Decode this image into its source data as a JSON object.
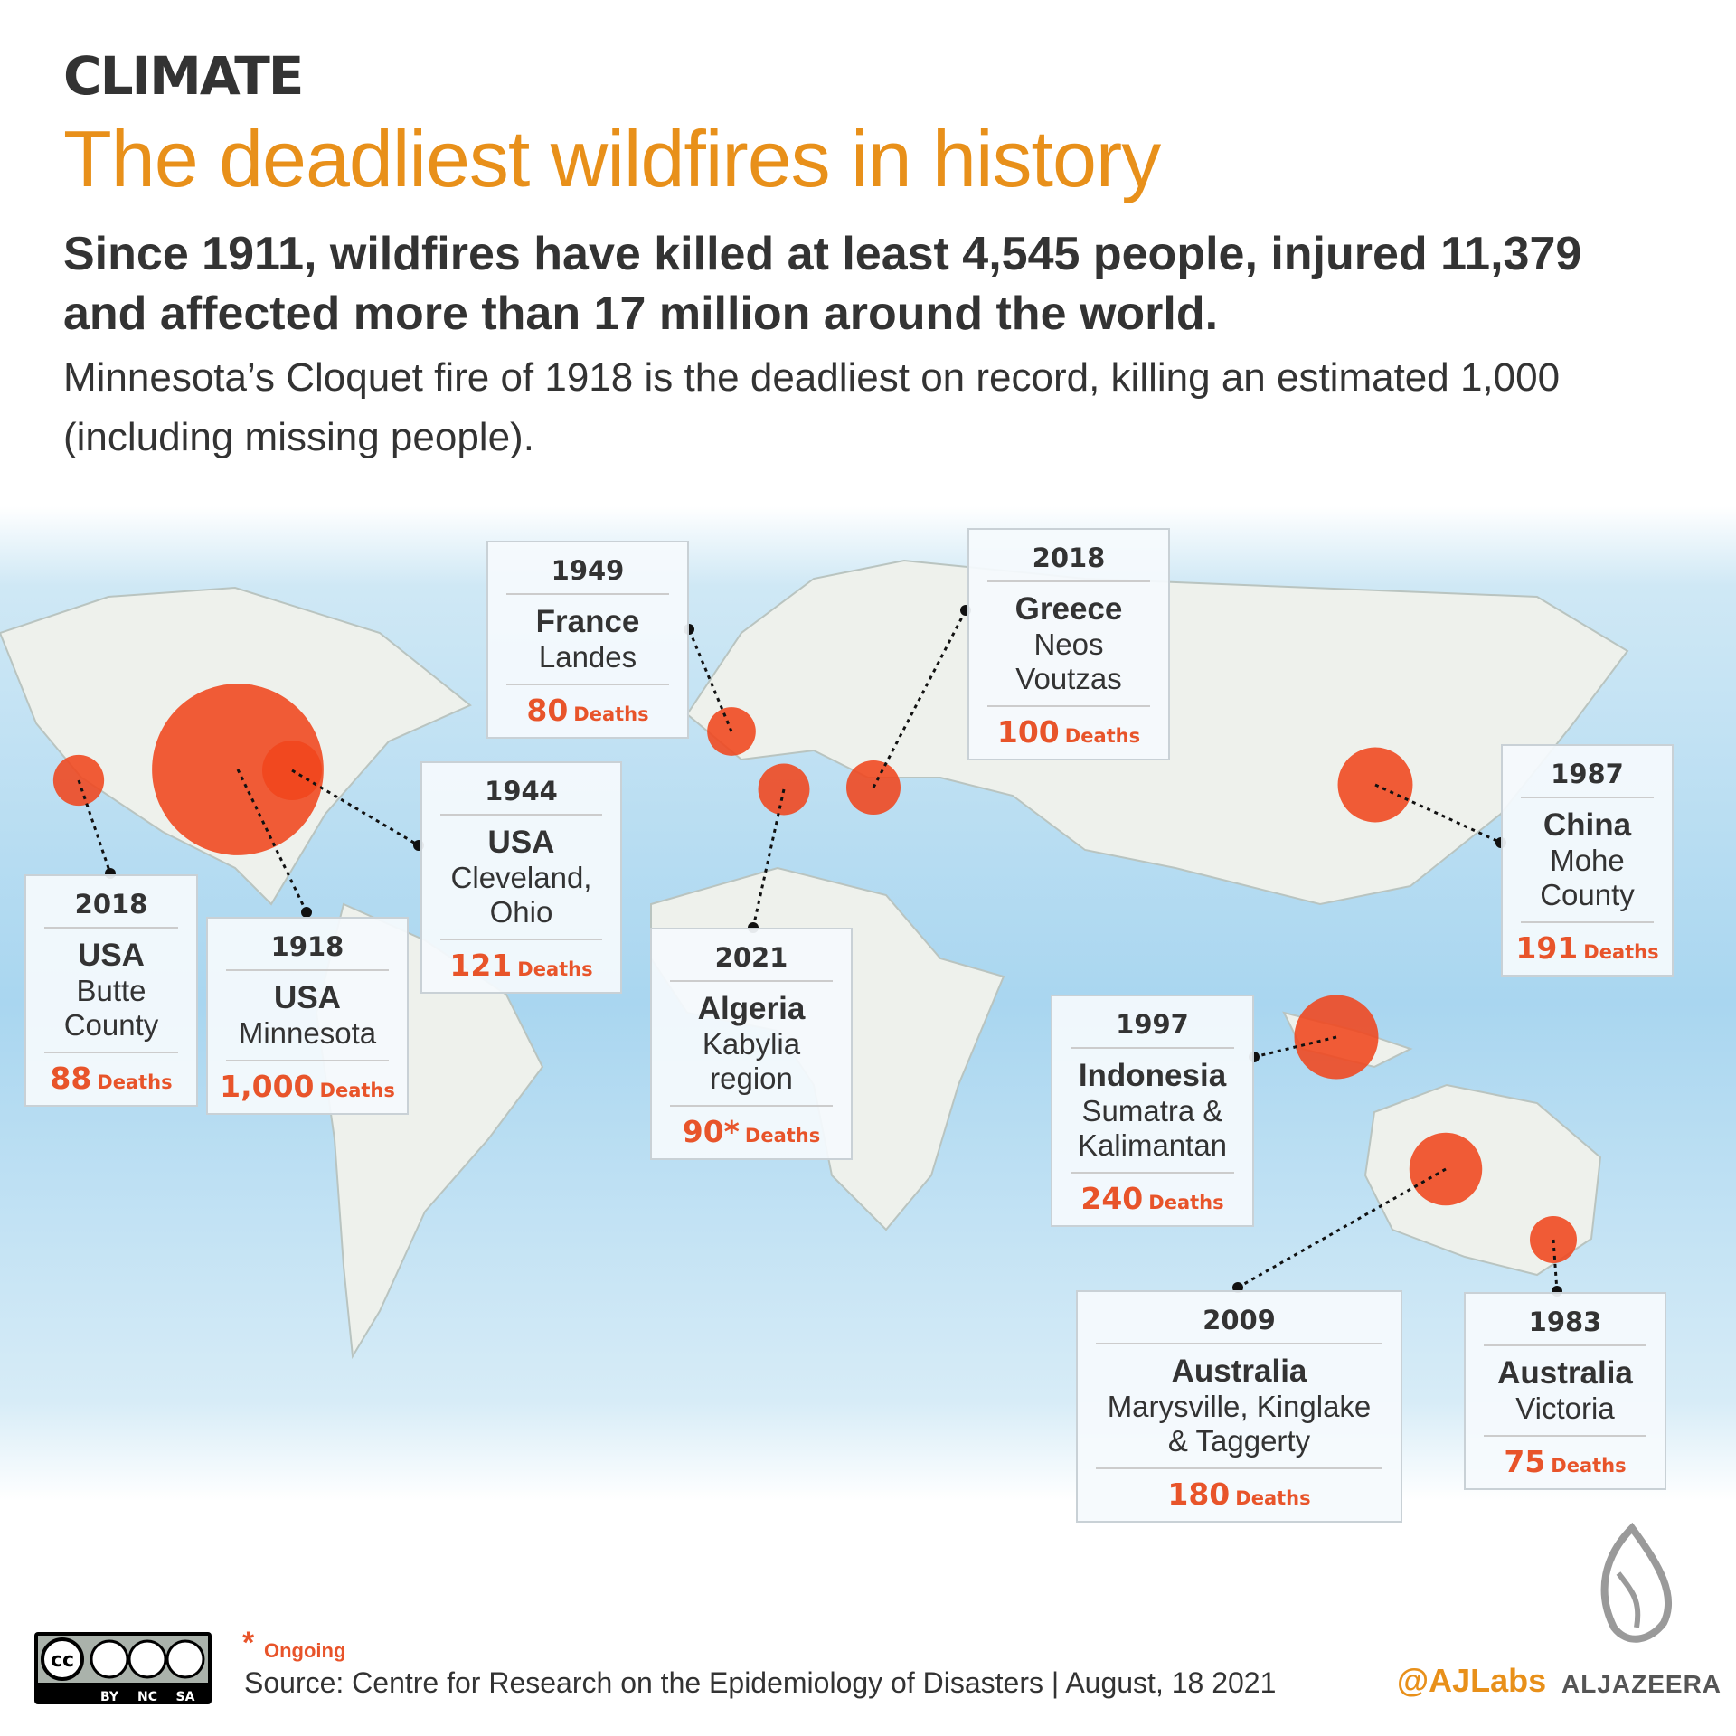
{
  "header": {
    "section": "CLIMATE",
    "title": "The deadliest wildfires in history",
    "subtitle": "Since 1911, wildfires have killed at least 4,545 people, injured 11,379 and affected more than 17 million around the world.",
    "description": "Minnesota’s Cloquet fire of 1918 is the deadliest on record, killing an estimated 1,000 (including missing people)."
  },
  "deaths_unit": "Deaths",
  "fires": [
    {
      "year": "1949",
      "country": "France",
      "place": "Landes",
      "deaths": 80
    },
    {
      "year": "2018",
      "country": "Greece",
      "place": "Neos Voutzas",
      "deaths": 100
    },
    {
      "year": "1944",
      "country": "USA",
      "place": "Cleveland, Ohio",
      "deaths": 121
    },
    {
      "year": "2018",
      "country": "USA",
      "place": "Butte County",
      "deaths": 88
    },
    {
      "year": "1918",
      "country": "USA",
      "place": "Minnesota",
      "deaths": 1000,
      "deaths_label": "1,000"
    },
    {
      "year": "2021",
      "country": "Algeria",
      "place": "Kabylia region",
      "deaths": 90,
      "deaths_label": "90*"
    },
    {
      "year": "1987",
      "country": "China",
      "place": "Mohe County",
      "deaths": 191
    },
    {
      "year": "1997",
      "country": "Indonesia",
      "place": "Sumatra & Kalimantan",
      "deaths": 240
    },
    {
      "year": "2009",
      "country": "Australia",
      "place": "Marysville, Kinglake & Taggerty",
      "deaths": 180
    },
    {
      "year": "1983",
      "country": "Australia",
      "place": "Victoria",
      "deaths": 75
    }
  ],
  "footer": {
    "footnote_mark": "*",
    "footnote": "Ongoing",
    "source": "Source: Centre for Research on the Epidemiology of Disasters | August, 18 2021",
    "license": [
      "BY",
      "NC",
      "SA"
    ],
    "handle": "@AJLabs",
    "brand": "ALJAZEERA"
  }
}
